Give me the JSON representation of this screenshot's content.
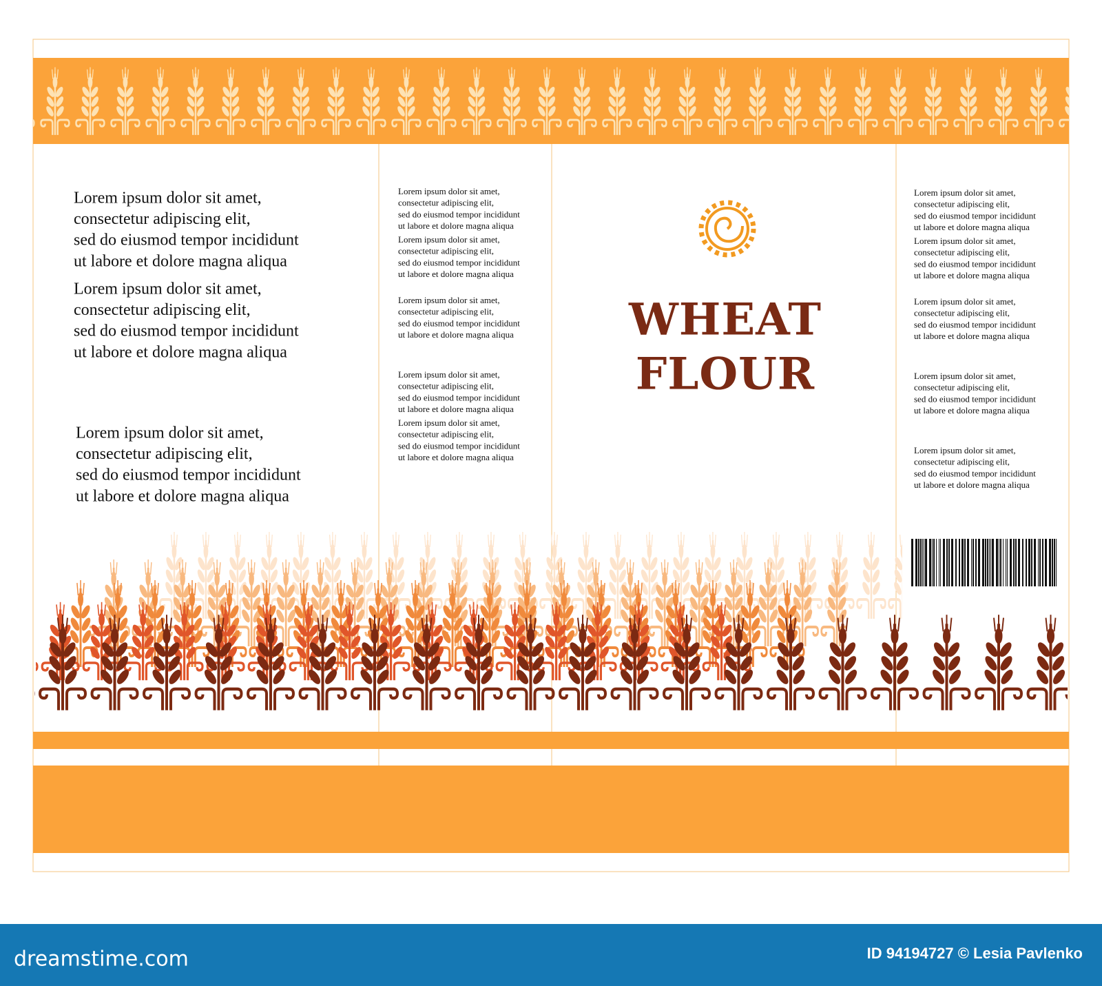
{
  "package": {
    "title_lines": [
      "WHEAT",
      "FLOUR"
    ],
    "panels": [
      {
        "paragraphs": [
          [
            "Lorem ipsum dolor sit amet,",
            "consectetur adipiscing elit,",
            "sed do eiusmod tempor incididunt",
            "ut labore et dolore magna aliqua"
          ],
          [
            "Lorem ipsum dolor sit amet,",
            "consectetur adipiscing elit,",
            "sed do eiusmod tempor incididunt",
            "ut labore et dolore magna aliqua"
          ],
          [
            "Lorem ipsum dolor sit amet,",
            "consectetur adipiscing elit,",
            "sed do eiusmod tempor incididunt",
            "ut labore et dolore magna aliqua"
          ]
        ]
      },
      {
        "paragraphs": [
          [
            "Lorem ipsum dolor sit amet,",
            "consectetur adipiscing elit,",
            "sed do eiusmod tempor incididunt",
            "ut labore et dolore magna aliqua"
          ],
          [
            "Lorem ipsum dolor sit amet,",
            "consectetur adipiscing elit,",
            "sed do eiusmod tempor incididunt",
            "ut labore et dolore magna aliqua"
          ],
          [
            "Lorem ipsum dolor sit amet,",
            "consectetur adipiscing elit,",
            "sed do eiusmod tempor incididunt",
            "ut labore et dolore magna aliqua"
          ],
          [
            "Lorem ipsum dolor sit amet,",
            "consectetur adipiscing elit,",
            "sed do eiusmod tempor incididunt",
            "ut labore et dolore magna aliqua"
          ],
          [
            "Lorem ipsum dolor sit amet,",
            "consectetur adipiscing elit,",
            "sed do eiusmod tempor incididunt",
            "ut labore et dolore magna aliqua"
          ]
        ]
      },
      {
        "paragraphs": [
          [
            "Lorem ipsum dolor sit amet,",
            "consectetur adipiscing elit,",
            "sed do eiusmod tempor incididunt",
            "ut labore et dolore magna aliqua"
          ],
          [
            "Lorem ipsum dolor sit amet,",
            "consectetur adipiscing elit,",
            "sed do eiusmod tempor incididunt",
            "ut labore et dolore magna aliqua"
          ],
          [
            "Lorem ipsum dolor sit amet,",
            "consectetur adipiscing elit,",
            "sed do eiusmod tempor incididunt",
            "ut labore et dolore magna aliqua"
          ],
          [
            "Lorem ipsum dolor sit amet,",
            "consectetur adipiscing elit,",
            "sed do eiusmod tempor incididunt",
            "ut labore et dolore magna aliqua"
          ],
          [
            "Lorem ipsum dolor sit amet,",
            "consectetur adipiscing elit,",
            "sed do eiusmod tempor incididunt",
            "ut labore et dolore magna aliqua"
          ]
        ]
      }
    ]
  },
  "footer": {
    "site": "dreamstime.com",
    "credit": "ID 94194727 © Lesia Pavlenko"
  }
}
